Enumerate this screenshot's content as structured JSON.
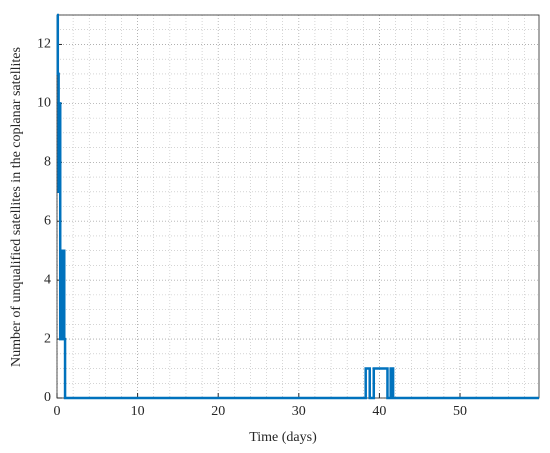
{
  "chart_data": {
    "type": "line",
    "xlabel": "Time (days)",
    "ylabel": "Number of unqualified satellites in the coplanar satellites",
    "x": [
      0,
      0.1,
      0.1,
      0.2,
      0.2,
      0.3,
      0.3,
      0.4,
      0.4,
      0.6,
      0.6,
      0.9,
      0.9,
      1.0,
      1.0,
      38.3,
      38.3,
      38.8,
      38.8,
      39.3,
      39.3,
      41.0,
      41.0,
      41.4,
      41.4,
      41.7,
      41.7,
      59.8
    ],
    "series": [
      {
        "color": "#0072bd",
        "values": [
          13,
          13,
          11,
          11,
          7,
          7,
          10,
          10,
          2,
          2,
          5,
          5,
          2,
          2,
          0,
          0,
          1,
          1,
          0,
          0,
          1,
          1,
          0,
          0,
          1,
          1,
          0,
          0
        ]
      }
    ],
    "xlim": [
      0,
      59.8
    ],
    "xticks": [
      0,
      10,
      20,
      30,
      40,
      50
    ],
    "ylim": [
      0,
      13
    ],
    "yticks": [
      0,
      2,
      4,
      6,
      8,
      10,
      12
    ],
    "grid": true,
    "minor_grid": true,
    "xminor_step": 2,
    "yminor_step": 0.5
  }
}
